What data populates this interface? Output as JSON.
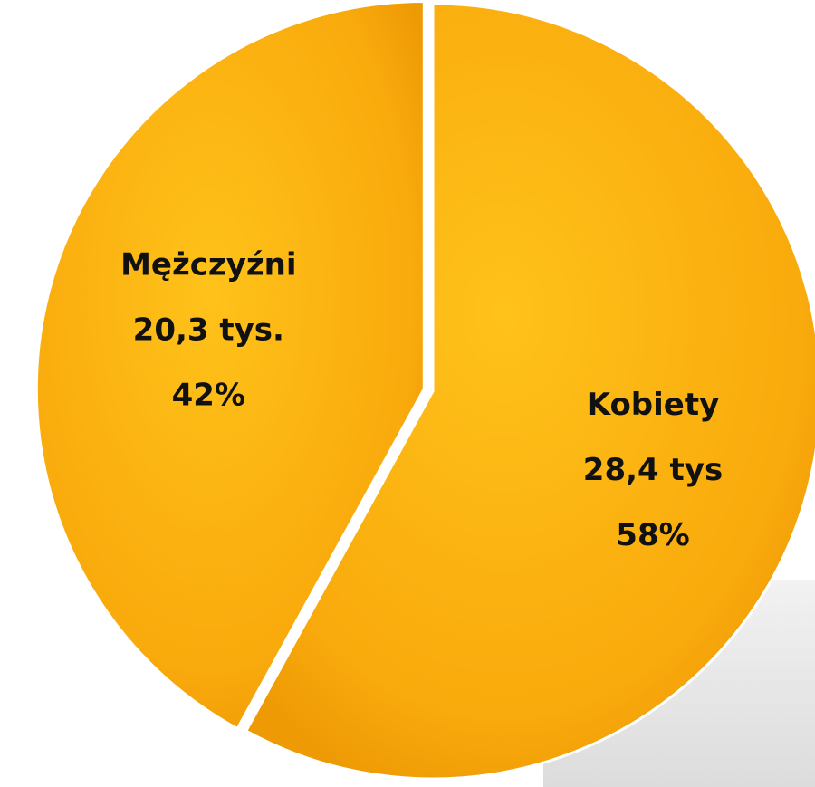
{
  "chart_data": {
    "type": "pie",
    "categories": [
      "Kobiety",
      "Mężczyźni"
    ],
    "values": [
      58,
      42
    ],
    "value_labels": [
      "58%",
      "42%"
    ],
    "amount_labels": [
      "28,4 tys",
      "20,3 tys."
    ],
    "color": "#fbb10e",
    "start_angle": 0,
    "direction": "clockwise"
  }
}
